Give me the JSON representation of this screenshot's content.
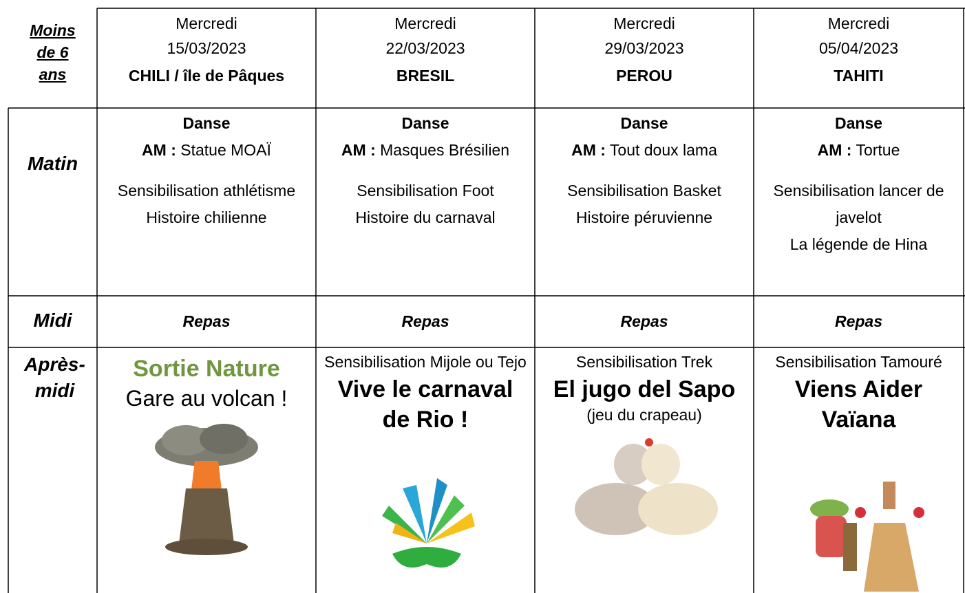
{
  "header": {
    "corner": [
      "Moins",
      "de 6",
      "ans"
    ],
    "days": [
      {
        "day": "Mercredi",
        "date": "15/03/2023",
        "theme": "CHILI / île de Pâques"
      },
      {
        "day": "Mercredi",
        "date": "22/03/2023",
        "theme": "BRESIL"
      },
      {
        "day": "Mercredi",
        "date": "29/03/2023",
        "theme": "PEROU"
      },
      {
        "day": "Mercredi",
        "date": "05/04/2023",
        "theme": "TAHITI"
      }
    ]
  },
  "morning": {
    "label": "Matin",
    "cells": [
      {
        "title": "Danse",
        "am_label": "AM :",
        "am_text": "Statue MOAÏ",
        "lines": [
          "Sensibilisation athlétisme",
          "Histoire chilienne"
        ]
      },
      {
        "title": "Danse",
        "am_label": "AM :",
        "am_text": "Masques Brésilien",
        "lines": [
          "Sensibilisation Foot",
          "Histoire du carnaval"
        ]
      },
      {
        "title": "Danse",
        "am_label": "AM :",
        "am_text": "Tout doux lama",
        "lines": [
          "Sensibilisation Basket",
          "Histoire péruvienne"
        ]
      },
      {
        "title": "Danse",
        "am_label": "AM :",
        "am_text": "Tortue",
        "lines": [
          "Sensibilisation lancer de javelot",
          "La légende de Hina"
        ]
      }
    ]
  },
  "noon": {
    "label": "Midi",
    "cells": [
      "Repas",
      "Repas",
      "Repas",
      "Repas"
    ]
  },
  "afternoon": {
    "label": "Après-midi",
    "cells": [
      {
        "title": "Sortie Nature",
        "subtitle": "Gare au volcan !"
      },
      {
        "intro": "Sensibilisation Mijole ou Tejo",
        "title": "Vive le carnaval de Rio !"
      },
      {
        "intro": "Sensibilisation Trek",
        "title": "El jugo del Sapo",
        "note": "(jeu du crapeau)"
      },
      {
        "intro": "Sensibilisation Tamouré",
        "title": "Viens Aider Vaïana"
      }
    ]
  }
}
